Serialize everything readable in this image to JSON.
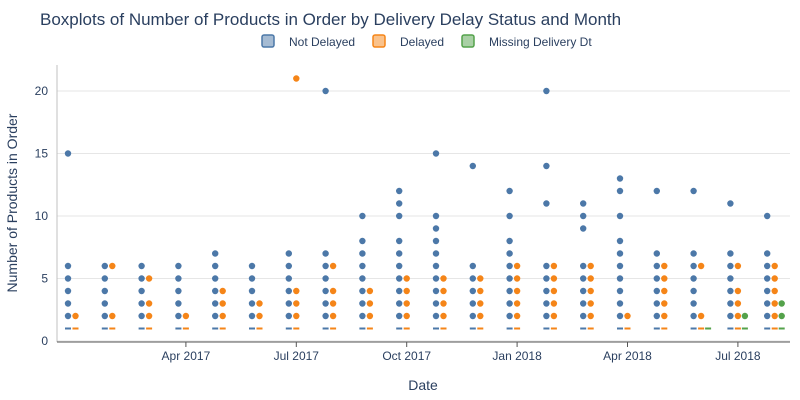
{
  "chart_data": {
    "type": "box",
    "title": "Boxplots of Number of Products in Order by Delivery Delay Status and Month",
    "xlabel": "Date",
    "ylabel": "Number of Products in Order",
    "ylim": [
      0,
      22
    ],
    "yticks": [
      0,
      5,
      10,
      15,
      20
    ],
    "xticks": [
      {
        "label": "Apr 2017",
        "month": "2017-04"
      },
      {
        "label": "Jul 2017",
        "month": "2017-07"
      },
      {
        "label": "Oct 2017",
        "month": "2017-10"
      },
      {
        "label": "Jan 2018",
        "month": "2018-01"
      },
      {
        "label": "Apr 2018",
        "month": "2018-04"
      },
      {
        "label": "Jul 2018",
        "month": "2018-07"
      }
    ],
    "grid": true,
    "legend_position": "top",
    "months": [
      "2017-01",
      "2017-02",
      "2017-03",
      "2017-04",
      "2017-05",
      "2017-06",
      "2017-07",
      "2017-08",
      "2017-09",
      "2017-10",
      "2017-11",
      "2017-12",
      "2018-01",
      "2018-02",
      "2018-03",
      "2018-04",
      "2018-05",
      "2018-06",
      "2018-07",
      "2018-08",
      "2018-09"
    ],
    "series": [
      {
        "name": "Not Delayed",
        "color": "#4c78a8",
        "points": [
          [
            0,
            [
              1,
              2,
              3,
              4,
              5,
              6,
              15
            ]
          ],
          [
            1,
            [
              1,
              2,
              3,
              4,
              5,
              6
            ]
          ],
          [
            2,
            [
              1,
              2,
              3,
              4,
              5,
              6
            ]
          ],
          [
            3,
            [
              1,
              2,
              3,
              4,
              5,
              6
            ]
          ],
          [
            4,
            [
              1,
              2,
              3,
              4,
              5,
              6,
              7
            ]
          ],
          [
            5,
            [
              1,
              2,
              3,
              4,
              5,
              6
            ]
          ],
          [
            6,
            [
              1,
              2,
              3,
              4,
              5,
              6,
              7
            ]
          ],
          [
            7,
            [
              1,
              2,
              3,
              4,
              5,
              6,
              7,
              20
            ]
          ],
          [
            8,
            [
              1,
              2,
              3,
              4,
              5,
              6,
              7,
              8,
              10
            ]
          ],
          [
            9,
            [
              1,
              2,
              3,
              4,
              5,
              6,
              7,
              8,
              10,
              11,
              12
            ]
          ],
          [
            10,
            [
              1,
              2,
              3,
              4,
              5,
              6,
              7,
              8,
              9,
              10,
              15
            ]
          ],
          [
            11,
            [
              1,
              2,
              3,
              4,
              5,
              6,
              14
            ]
          ],
          [
            12,
            [
              1,
              2,
              3,
              4,
              5,
              6,
              7,
              8,
              10,
              12
            ]
          ],
          [
            13,
            [
              1,
              2,
              3,
              4,
              5,
              6,
              11,
              14,
              20
            ]
          ],
          [
            14,
            [
              1,
              2,
              3,
              4,
              5,
              6,
              9,
              10,
              11
            ]
          ],
          [
            15,
            [
              1,
              2,
              3,
              4,
              5,
              6,
              7,
              8,
              10,
              12,
              13
            ]
          ],
          [
            16,
            [
              1,
              2,
              3,
              4,
              5,
              6,
              7,
              12
            ]
          ],
          [
            17,
            [
              1,
              2,
              3,
              4,
              5,
              6,
              7,
              12
            ]
          ],
          [
            18,
            [
              1,
              2,
              3,
              4,
              5,
              6,
              7,
              11
            ]
          ],
          [
            19,
            [
              1,
              2,
              3,
              4,
              5,
              6,
              7,
              10
            ]
          ]
        ]
      },
      {
        "name": "Delayed",
        "color": "#f58518",
        "points": [
          [
            0,
            [
              1,
              2
            ]
          ],
          [
            1,
            [
              1,
              2,
              6
            ]
          ],
          [
            2,
            [
              1,
              2,
              3,
              5
            ]
          ],
          [
            3,
            [
              1,
              2
            ]
          ],
          [
            4,
            [
              1,
              2,
              3,
              4
            ]
          ],
          [
            5,
            [
              1,
              2,
              3
            ]
          ],
          [
            6,
            [
              1,
              2,
              3,
              4,
              21
            ]
          ],
          [
            7,
            [
              1,
              2,
              3,
              4,
              6
            ]
          ],
          [
            8,
            [
              1,
              2,
              3,
              4
            ]
          ],
          [
            9,
            [
              1,
              2,
              3,
              4,
              5
            ]
          ],
          [
            10,
            [
              1,
              2,
              3,
              4,
              5
            ]
          ],
          [
            11,
            [
              1,
              2,
              3,
              4,
              5
            ]
          ],
          [
            12,
            [
              1,
              2,
              3,
              4,
              5,
              6
            ]
          ],
          [
            13,
            [
              1,
              2,
              3,
              4,
              5,
              6
            ]
          ],
          [
            14,
            [
              1,
              2,
              3,
              4,
              5,
              6
            ]
          ],
          [
            15,
            [
              1,
              2
            ]
          ],
          [
            16,
            [
              1,
              2,
              3,
              4,
              5,
              6
            ]
          ],
          [
            17,
            [
              1,
              2,
              6
            ]
          ],
          [
            18,
            [
              1,
              2,
              3,
              4,
              6
            ]
          ],
          [
            19,
            [
              1,
              2,
              3,
              4,
              5,
              6
            ]
          ]
        ]
      },
      {
        "name": "Missing Delivery Dt",
        "color": "#54a24b",
        "points": [
          [
            17,
            [
              1
            ]
          ],
          [
            18,
            [
              1,
              2
            ]
          ],
          [
            19,
            [
              1,
              2,
              3
            ]
          ]
        ]
      }
    ]
  }
}
